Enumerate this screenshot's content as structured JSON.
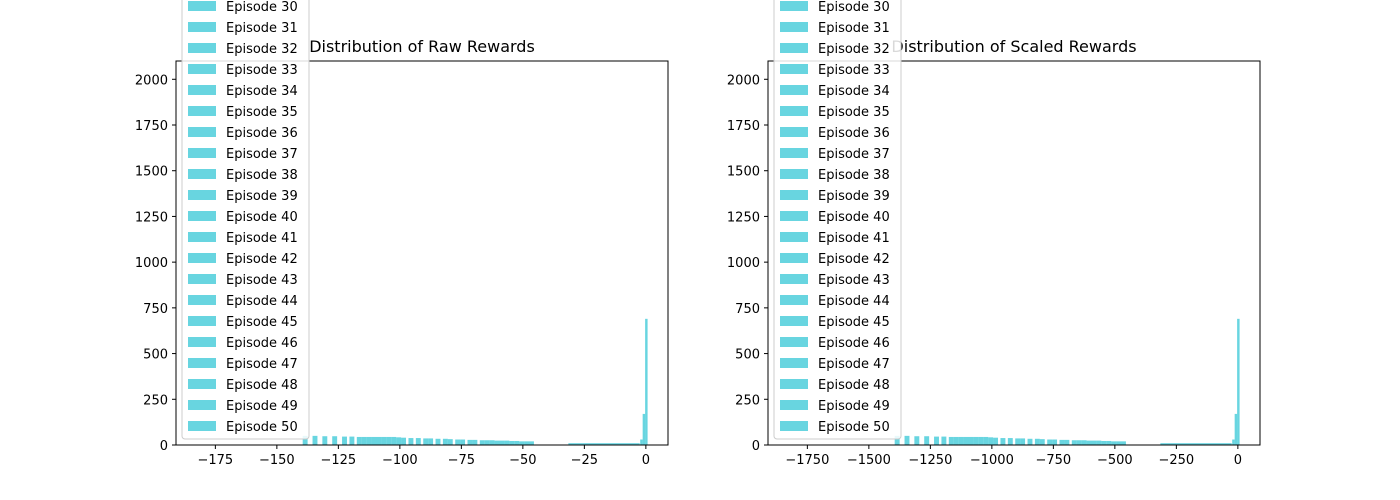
{
  "chart_data": [
    {
      "type": "bar",
      "title": "Distribution of Raw Rewards",
      "xlabel": "",
      "ylabel": "",
      "xlim": [
        -191,
        9
      ],
      "ylim": [
        0,
        2100
      ],
      "xticks": [
        -175,
        -150,
        -125,
        -100,
        -75,
        -50,
        -25,
        0
      ],
      "yticks": [
        0,
        250,
        500,
        750,
        1000,
        1250,
        1500,
        1750,
        2000
      ],
      "bar_color": "#17becf",
      "bars": [
        {
          "x0": -139.5,
          "x1": -137.5,
          "value": 50
        },
        {
          "x0": -135.5,
          "x1": -133.5,
          "value": 50
        },
        {
          "x0": -131.5,
          "x1": -129.5,
          "value": 48
        },
        {
          "x0": -127.5,
          "x1": -125.5,
          "value": 48
        },
        {
          "x0": -123.5,
          "x1": -121.5,
          "value": 46
        },
        {
          "x0": -120.5,
          "x1": -118.5,
          "value": 46
        },
        {
          "x0": -117.5,
          "x1": -115.5,
          "value": 44
        },
        {
          "x0": -115.5,
          "x1": -113.5,
          "value": 44
        },
        {
          "x0": -113.5,
          "x1": -111.5,
          "value": 44
        },
        {
          "x0": -111.5,
          "x1": -109.5,
          "value": 44
        },
        {
          "x0": -109.5,
          "x1": -107.5,
          "value": 44
        },
        {
          "x0": -107.5,
          "x1": -105.5,
          "value": 44
        },
        {
          "x0": -105.5,
          "x1": -103.5,
          "value": 44
        },
        {
          "x0": -103.5,
          "x1": -101.5,
          "value": 44
        },
        {
          "x0": -101.5,
          "x1": -99.5,
          "value": 42
        },
        {
          "x0": -99.5,
          "x1": -97.5,
          "value": 40
        },
        {
          "x0": -96.5,
          "x1": -94.5,
          "value": 38
        },
        {
          "x0": -93.5,
          "x1": -91.5,
          "value": 38
        },
        {
          "x0": -90.5,
          "x1": -88.5,
          "value": 36
        },
        {
          "x0": -88.5,
          "x1": -86.5,
          "value": 36
        },
        {
          "x0": -85.5,
          "x1": -83.5,
          "value": 34
        },
        {
          "x0": -82.5,
          "x1": -80.5,
          "value": 34
        },
        {
          "x0": -80.5,
          "x1": -78.5,
          "value": 32
        },
        {
          "x0": -77.5,
          "x1": -75.5,
          "value": 30
        },
        {
          "x0": -75.5,
          "x1": -73.5,
          "value": 30
        },
        {
          "x0": -72.5,
          "x1": -70.5,
          "value": 28
        },
        {
          "x0": -70.5,
          "x1": -68.5,
          "value": 28
        },
        {
          "x0": -67.5,
          "x1": -65.5,
          "value": 26
        },
        {
          "x0": -65.5,
          "x1": -63.5,
          "value": 26
        },
        {
          "x0": -63.5,
          "x1": -61.5,
          "value": 26
        },
        {
          "x0": -61.5,
          "x1": -59.5,
          "value": 24
        },
        {
          "x0": -59.5,
          "x1": -57.5,
          "value": 24
        },
        {
          "x0": -57.5,
          "x1": -55.5,
          "value": 24
        },
        {
          "x0": -55.5,
          "x1": -53.5,
          "value": 22
        },
        {
          "x0": -53.5,
          "x1": -51.5,
          "value": 22
        },
        {
          "x0": -51.5,
          "x1": -49.5,
          "value": 20
        },
        {
          "x0": -49.5,
          "x1": -47.5,
          "value": 20
        },
        {
          "x0": -47.5,
          "x1": -45.5,
          "value": 20
        },
        {
          "x0": -44.5,
          "x1": -33.5,
          "value": 2
        },
        {
          "x0": -31.5,
          "x1": -2.5,
          "value": 10
        },
        {
          "x0": -2.3,
          "x1": -1.3,
          "value": 30
        },
        {
          "x0": -1.3,
          "x1": -0.3,
          "value": 170
        },
        {
          "x0": -0.3,
          "x1": 0.7,
          "value": 690
        }
      ],
      "legend": {
        "location": "upper left (clipped above the plot)",
        "entries": [
          "Episode 30",
          "Episode 31",
          "Episode 32",
          "Episode 33",
          "Episode 34",
          "Episode 35",
          "Episode 36",
          "Episode 37",
          "Episode 38",
          "Episode 39",
          "Episode 40",
          "Episode 41",
          "Episode 42",
          "Episode 43",
          "Episode 44",
          "Episode 45",
          "Episode 46",
          "Episode 47",
          "Episode 48",
          "Episode 49",
          "Episode 50"
        ]
      }
    },
    {
      "type": "bar",
      "title": "Distribution of Scaled Rewards",
      "xlabel": "",
      "ylabel": "",
      "xlim": [
        -1910,
        90
      ],
      "ylim": [
        0,
        2100
      ],
      "xticks": [
        -1750,
        -1500,
        -1250,
        -1000,
        -750,
        -500,
        -250,
        0
      ],
      "yticks": [
        0,
        250,
        500,
        750,
        1000,
        1250,
        1500,
        1750,
        2000
      ],
      "bar_color": "#17becf",
      "bars": [
        {
          "x0": -1395,
          "x1": -1375,
          "value": 50
        },
        {
          "x0": -1355,
          "x1": -1335,
          "value": 50
        },
        {
          "x0": -1315,
          "x1": -1295,
          "value": 48
        },
        {
          "x0": -1275,
          "x1": -1255,
          "value": 48
        },
        {
          "x0": -1235,
          "x1": -1215,
          "value": 46
        },
        {
          "x0": -1205,
          "x1": -1185,
          "value": 46
        },
        {
          "x0": -1175,
          "x1": -1155,
          "value": 44
        },
        {
          "x0": -1155,
          "x1": -1135,
          "value": 44
        },
        {
          "x0": -1135,
          "x1": -1115,
          "value": 44
        },
        {
          "x0": -1115,
          "x1": -1095,
          "value": 44
        },
        {
          "x0": -1095,
          "x1": -1075,
          "value": 44
        },
        {
          "x0": -1075,
          "x1": -1055,
          "value": 44
        },
        {
          "x0": -1055,
          "x1": -1035,
          "value": 44
        },
        {
          "x0": -1035,
          "x1": -1015,
          "value": 44
        },
        {
          "x0": -1015,
          "x1": -995,
          "value": 42
        },
        {
          "x0": -995,
          "x1": -975,
          "value": 40
        },
        {
          "x0": -965,
          "x1": -945,
          "value": 38
        },
        {
          "x0": -935,
          "x1": -915,
          "value": 38
        },
        {
          "x0": -905,
          "x1": -885,
          "value": 36
        },
        {
          "x0": -885,
          "x1": -865,
          "value": 36
        },
        {
          "x0": -855,
          "x1": -835,
          "value": 34
        },
        {
          "x0": -825,
          "x1": -805,
          "value": 34
        },
        {
          "x0": -805,
          "x1": -785,
          "value": 32
        },
        {
          "x0": -775,
          "x1": -755,
          "value": 30
        },
        {
          "x0": -755,
          "x1": -735,
          "value": 30
        },
        {
          "x0": -725,
          "x1": -705,
          "value": 28
        },
        {
          "x0": -705,
          "x1": -685,
          "value": 28
        },
        {
          "x0": -675,
          "x1": -655,
          "value": 26
        },
        {
          "x0": -655,
          "x1": -635,
          "value": 26
        },
        {
          "x0": -635,
          "x1": -615,
          "value": 26
        },
        {
          "x0": -615,
          "x1": -595,
          "value": 24
        },
        {
          "x0": -595,
          "x1": -575,
          "value": 24
        },
        {
          "x0": -575,
          "x1": -555,
          "value": 24
        },
        {
          "x0": -555,
          "x1": -535,
          "value": 22
        },
        {
          "x0": -535,
          "x1": -515,
          "value": 22
        },
        {
          "x0": -515,
          "x1": -495,
          "value": 20
        },
        {
          "x0": -495,
          "x1": -475,
          "value": 20
        },
        {
          "x0": -475,
          "x1": -455,
          "value": 20
        },
        {
          "x0": -445,
          "x1": -335,
          "value": 2
        },
        {
          "x0": -315,
          "x1": -25,
          "value": 10
        },
        {
          "x0": -23,
          "x1": -13,
          "value": 30
        },
        {
          "x0": -13,
          "x1": -3,
          "value": 170
        },
        {
          "x0": -3,
          "x1": 7,
          "value": 690
        }
      ],
      "legend": {
        "location": "upper left (clipped above the plot)",
        "entries": [
          "Episode 30",
          "Episode 31",
          "Episode 32",
          "Episode 33",
          "Episode 34",
          "Episode 35",
          "Episode 36",
          "Episode 37",
          "Episode 38",
          "Episode 39",
          "Episode 40",
          "Episode 41",
          "Episode 42",
          "Episode 43",
          "Episode 44",
          "Episode 45",
          "Episode 46",
          "Episode 47",
          "Episode 48",
          "Episode 49",
          "Episode 50"
        ]
      }
    }
  ]
}
